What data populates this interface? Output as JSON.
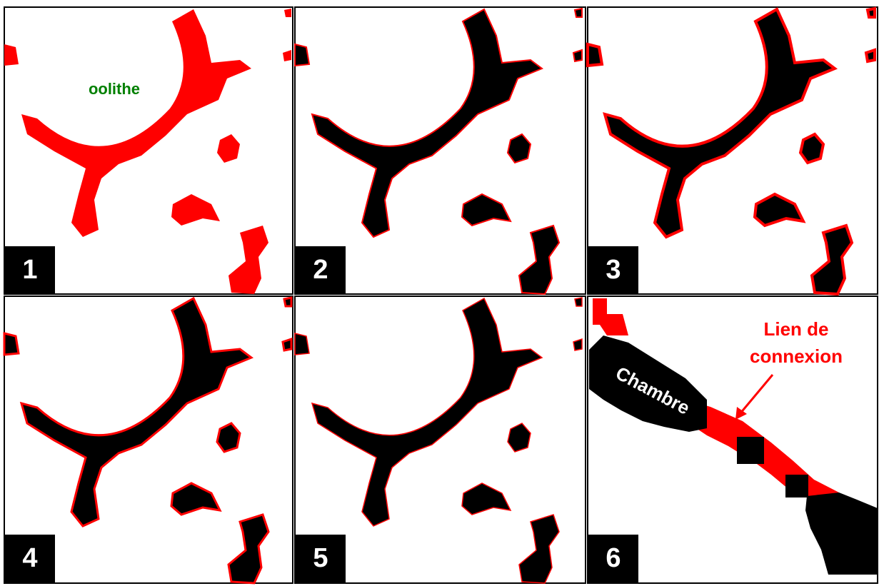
{
  "panels": [
    {
      "number": "1"
    },
    {
      "number": "2"
    },
    {
      "number": "3"
    },
    {
      "number": "4"
    },
    {
      "number": "5"
    },
    {
      "number": "6"
    }
  ],
  "labels": {
    "oolithe": "oolithe",
    "chamber": "Chambre",
    "link": [
      "Lien de",
      "connexion"
    ]
  }
}
